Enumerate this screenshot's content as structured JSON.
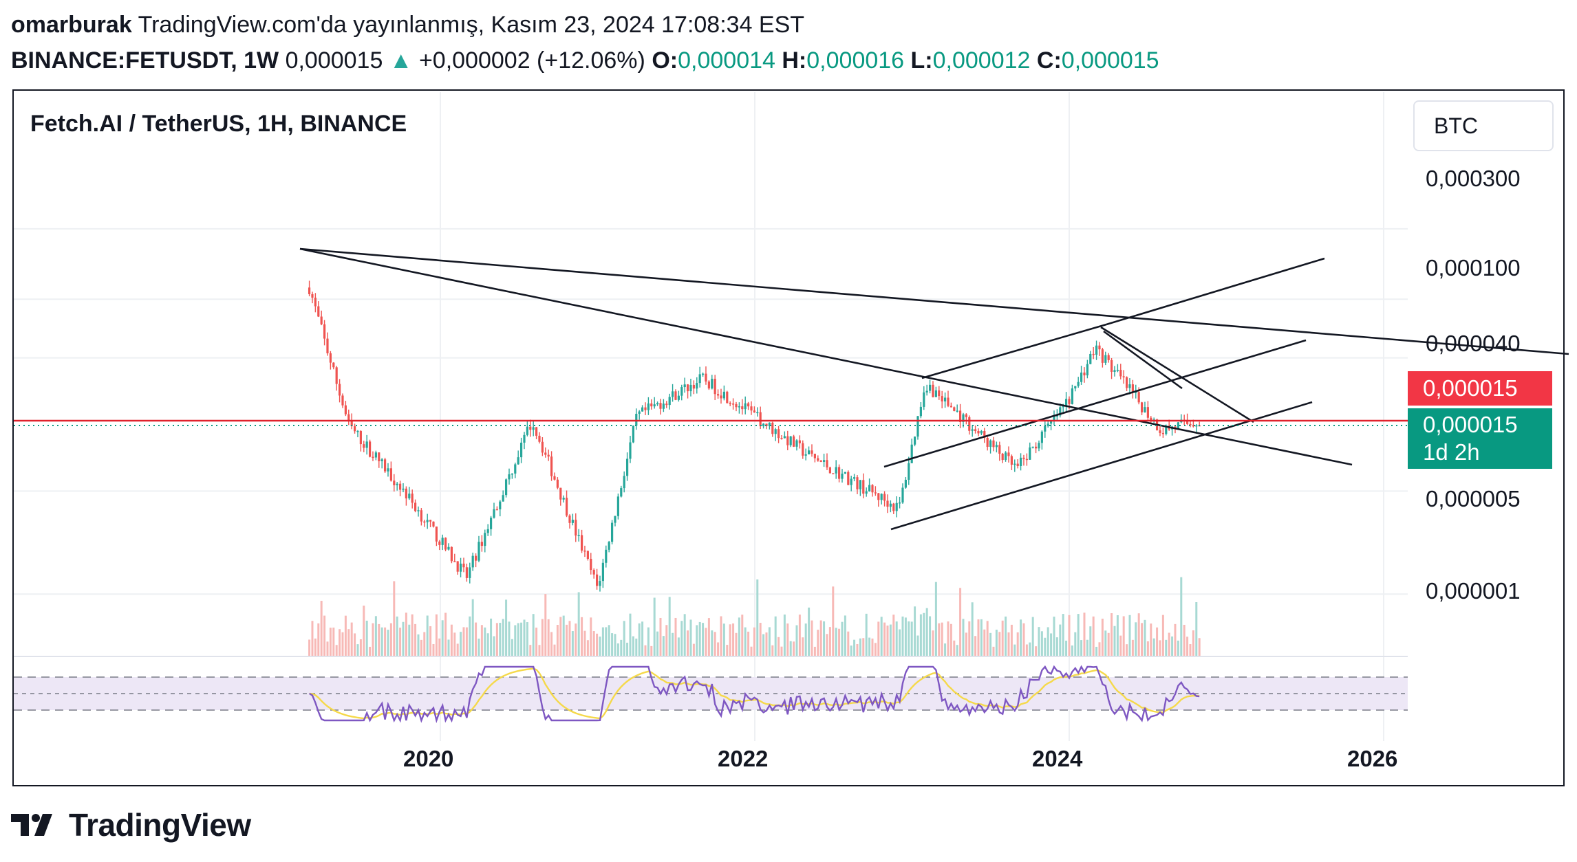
{
  "header": {
    "author": "omarburak",
    "published": "TradingView.com'da yayınlanmış, Kasım 23, 2024 17:08:34 EST",
    "symbol": "BINANCE:FETUSDT, 1W",
    "last": "0,000015",
    "change_arrow": "▲",
    "change": "+0,000002 (+12.06%)",
    "o_label": "O:",
    "o": "0,000014",
    "h_label": "H:",
    "h": "0,000016",
    "l_label": "L:",
    "l": "0,000012",
    "c_label": "C:",
    "c": "0,000015"
  },
  "legend": "Fetch.AI / TetherUS, 1H, BINANCE",
  "currency_button": "BTC",
  "price_axis": {
    "labels": [
      "0,000300",
      "0,000100",
      "0,000040",
      "0,000005",
      "0,000001"
    ],
    "current_price_red": "0,000015",
    "current_price_green": "0,000015",
    "countdown": "1d 2h"
  },
  "time_axis": [
    "2020",
    "2022",
    "2024",
    "2026"
  ],
  "brand": {
    "name": "TradingView"
  },
  "colors": {
    "up": "#26a69a",
    "down": "#ef5350",
    "price_line": "#e0212b",
    "rsi": "#7e57c2",
    "rsi_ma": "#f5d94a",
    "rsi_band": "#ede7f6"
  },
  "chart_data": {
    "type": "candlestick",
    "scale": "log",
    "y_ticks": [
      0.0003,
      0.0001,
      4e-05,
      5e-06,
      1e-06
    ],
    "x_range": [
      "2019-02",
      "2026-03"
    ],
    "close_price": 1.5e-05,
    "price_series_approx": [
      {
        "date": "2019-03",
        "price": 0.00012
      },
      {
        "date": "2019-06",
        "price": 1.4e-05
      },
      {
        "date": "2019-10",
        "price": 5.3e-06
      },
      {
        "date": "2020-03",
        "price": 1.3e-06
      },
      {
        "date": "2020-08",
        "price": 1.5e-05
      },
      {
        "date": "2021-01",
        "price": 1.1e-06
      },
      {
        "date": "2021-04",
        "price": 1.6e-05
      },
      {
        "date": "2021-09",
        "price": 2.9e-05
      },
      {
        "date": "2022-05",
        "price": 8.9e-06
      },
      {
        "date": "2022-12",
        "price": 3.8e-06
      },
      {
        "date": "2023-02",
        "price": 2.7e-05
      },
      {
        "date": "2023-09",
        "price": 7e-06
      },
      {
        "date": "2024-01",
        "price": 2.1e-05
      },
      {
        "date": "2024-03",
        "price": 4.7e-05
      },
      {
        "date": "2024-08",
        "price": 1.3e-05
      },
      {
        "date": "2024-11",
        "price": 1.5e-05
      }
    ],
    "rsi_overbought": 70,
    "rsi_oversold": 30
  }
}
